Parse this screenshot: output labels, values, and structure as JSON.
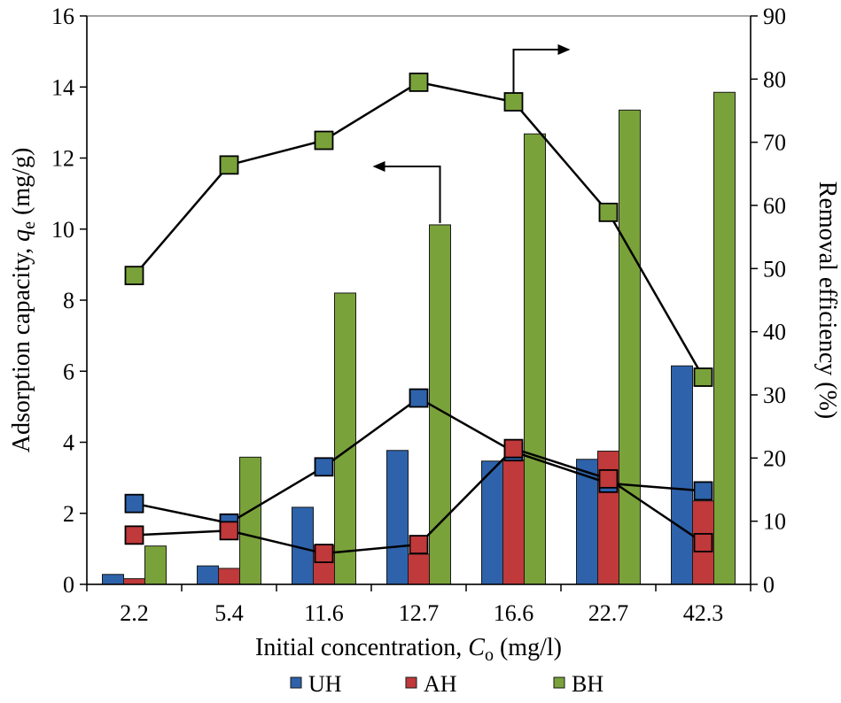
{
  "chart_data": {
    "type": "bar+line",
    "categories": [
      "2.2",
      "5.4",
      "11.6",
      "12.7",
      "16.6",
      "22.7",
      "42.3"
    ],
    "xlabel_prefix": "Initial concentration, ",
    "xlabel_var": "C",
    "xlabel_sub": "o",
    "xlabel_suffix": " (mg/l)",
    "ylabel_prefix": "Adsorption capacity, ",
    "ylabel_var": "q",
    "ylabel_sub": "e",
    "ylabel_suffix": " (mg/g)",
    "y2label": "Removal efficiency (%)",
    "ylim": [
      0,
      16
    ],
    "y2lim": [
      0,
      90
    ],
    "yticks": [
      "0",
      "2",
      "4",
      "6",
      "8",
      "10",
      "12",
      "14",
      "16"
    ],
    "y2ticks": [
      "0",
      "10",
      "20",
      "30",
      "40",
      "50",
      "60",
      "70",
      "80",
      "90"
    ],
    "bar_series": [
      {
        "name": "UH",
        "color": "#2e62ab",
        "values": [
          0.28,
          0.52,
          2.17,
          3.77,
          3.47,
          3.52,
          6.15
        ]
      },
      {
        "name": "AH",
        "color": "#c0393b",
        "values": [
          0.16,
          0.45,
          1.1,
          0.85,
          3.5,
          3.75,
          2.35
        ]
      },
      {
        "name": "BH",
        "color": "#7aa23a",
        "values": [
          1.08,
          3.58,
          8.2,
          10.12,
          12.68,
          13.35,
          13.85
        ]
      }
    ],
    "line_series": [
      {
        "name": "UH",
        "color": "#2e62ab",
        "values": [
          12.8,
          9.7,
          18.6,
          29.5,
          21.0,
          16.0,
          14.8
        ]
      },
      {
        "name": "AH",
        "color": "#c0393b",
        "values": [
          7.8,
          8.5,
          4.9,
          6.3,
          21.5,
          16.7,
          6.6
        ]
      },
      {
        "name": "BH",
        "color": "#7aa23a",
        "values": [
          48.9,
          66.4,
          70.3,
          79.5,
          76.4,
          58.9,
          32.8
        ]
      }
    ],
    "annotations": [
      {
        "type": "arrow",
        "direction": "right",
        "meaning": "BH removal efficiency plotted on right axis"
      },
      {
        "type": "arrow",
        "direction": "left",
        "meaning": "Adsorption capacity plotted on left axis"
      }
    ],
    "legend": [
      "UH",
      "AH",
      "BH"
    ],
    "legend_position": "bottom"
  }
}
